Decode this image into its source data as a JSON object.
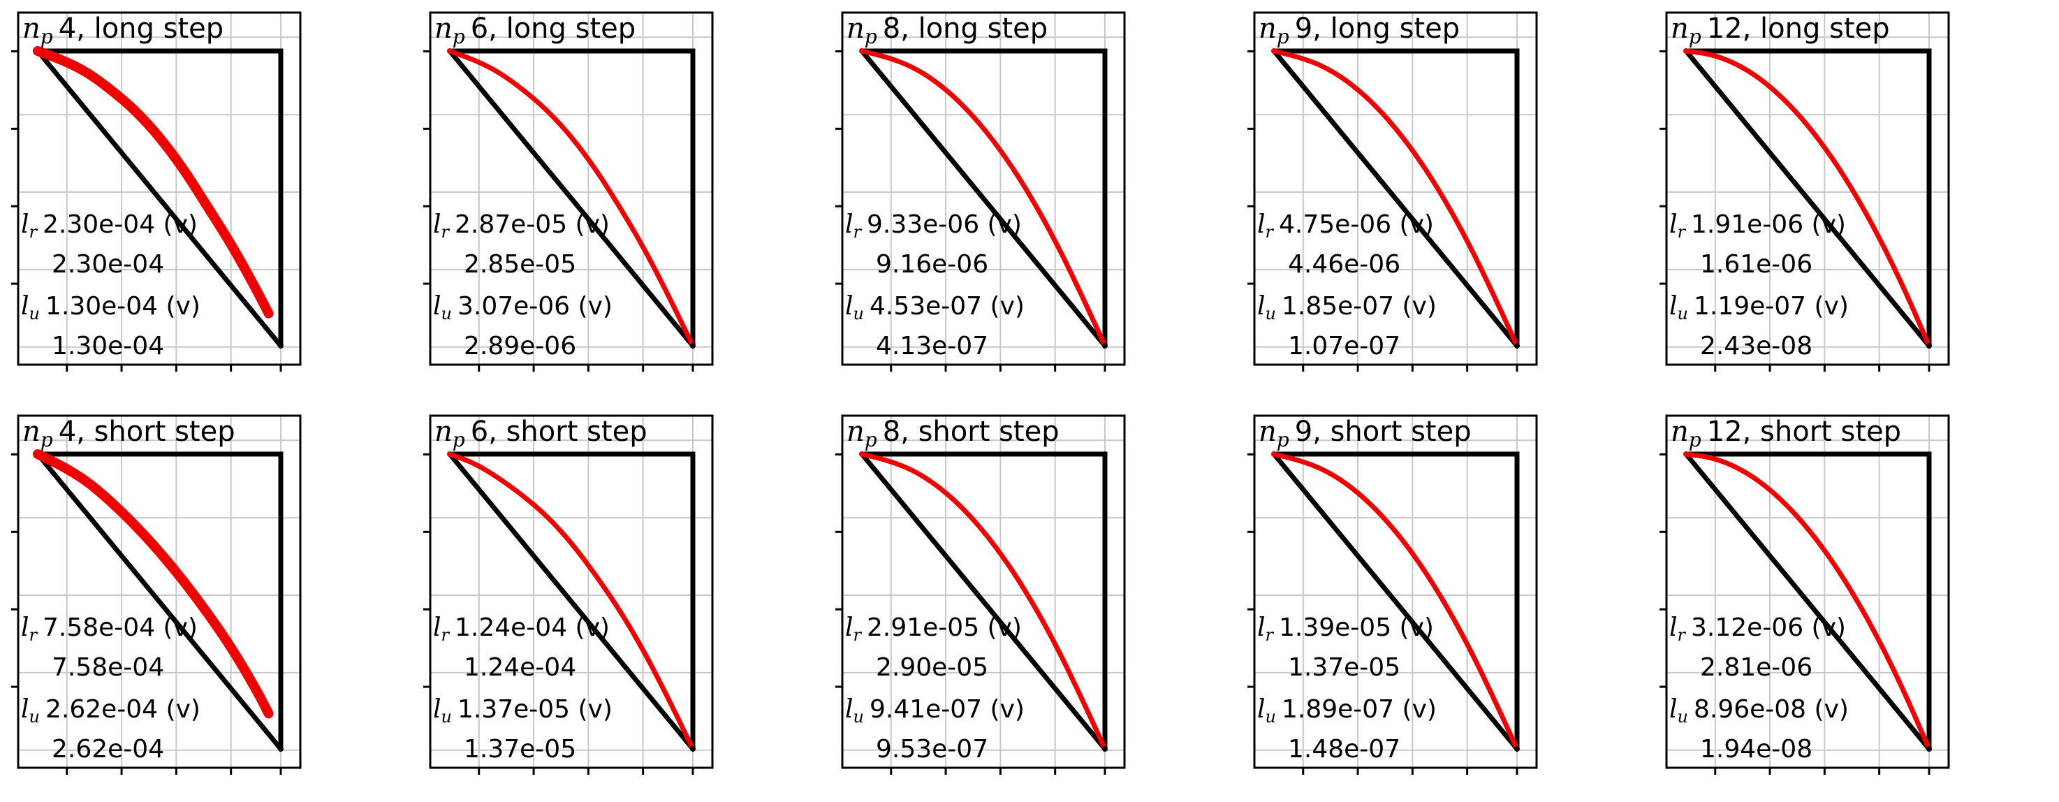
{
  "colors": {
    "curve": "#ee0000",
    "frame": "#000000",
    "grid": "#c8c8c8",
    "background": "#ffffff"
  },
  "chart_data": [
    {
      "type": "line",
      "title": "4, long step",
      "np": "4",
      "lr": {
        "top": "2.30e-04 (v)",
        "bottom": "2.30e-04"
      },
      "lu": {
        "top": "1.30e-04 (v)",
        "bottom": "1.30e-04"
      },
      "series": [
        {
          "x": [
            0,
            1
          ],
          "y": [
            1,
            0
          ]
        },
        {
          "x": [
            0,
            1,
            1
          ],
          "y": [
            1,
            1,
            0
          ]
        },
        {
          "x": [
            0,
            0.1,
            0.2,
            0.3,
            0.4,
            0.5,
            0.6,
            0.7,
            0.8,
            0.9,
            0.95
          ],
          "y": [
            1,
            0.97,
            0.93,
            0.87,
            0.8,
            0.71,
            0.6,
            0.47,
            0.34,
            0.19,
            0.11
          ]
        }
      ]
    },
    {
      "type": "line",
      "title": "6, long step",
      "np": "6",
      "lr": {
        "top": "2.87e-05 (v)",
        "bottom": "2.85e-05"
      },
      "lu": {
        "top": "3.07e-06 (v)",
        "bottom": "2.89e-06"
      },
      "series": [
        {
          "x": [
            0,
            1
          ],
          "y": [
            1,
            0
          ]
        },
        {
          "x": [
            0,
            1,
            1
          ],
          "y": [
            1,
            1,
            0
          ]
        },
        {
          "x": [
            0,
            0.1,
            0.2,
            0.3,
            0.4,
            0.5,
            0.6,
            0.7,
            0.8,
            0.9,
            1
          ],
          "y": [
            1,
            0.97,
            0.93,
            0.87,
            0.8,
            0.71,
            0.6,
            0.47,
            0.33,
            0.17,
            0
          ]
        }
      ]
    },
    {
      "type": "line",
      "title": "8, long step",
      "np": "8",
      "lr": {
        "top": "9.33e-06 (v)",
        "bottom": "9.16e-06"
      },
      "lu": {
        "top": "4.53e-07 (v)",
        "bottom": "4.13e-07"
      },
      "series": [
        {
          "x": [
            0,
            1
          ],
          "y": [
            1,
            0
          ]
        },
        {
          "x": [
            0,
            1,
            1
          ],
          "y": [
            1,
            1,
            0
          ]
        },
        {
          "x": [
            0,
            0.1,
            0.2,
            0.3,
            0.4,
            0.5,
            0.6,
            0.7,
            0.8,
            0.9,
            1
          ],
          "y": [
            1,
            0.98,
            0.95,
            0.9,
            0.83,
            0.74,
            0.63,
            0.5,
            0.35,
            0.18,
            0
          ]
        }
      ]
    },
    {
      "type": "line",
      "title": "9, long step",
      "np": "9",
      "lr": {
        "top": "4.75e-06 (v)",
        "bottom": "4.46e-06"
      },
      "lu": {
        "top": "1.85e-07 (v)",
        "bottom": "1.07e-07"
      },
      "series": [
        {
          "x": [
            0,
            1
          ],
          "y": [
            1,
            0
          ]
        },
        {
          "x": [
            0,
            1,
            1
          ],
          "y": [
            1,
            1,
            0
          ]
        },
        {
          "x": [
            0,
            0.1,
            0.2,
            0.3,
            0.4,
            0.5,
            0.6,
            0.7,
            0.8,
            0.9,
            1
          ],
          "y": [
            1,
            0.98,
            0.95,
            0.9,
            0.83,
            0.74,
            0.63,
            0.5,
            0.35,
            0.18,
            0
          ]
        }
      ]
    },
    {
      "type": "line",
      "title": "12, long step",
      "np": "12",
      "lr": {
        "top": "1.91e-06 (v)",
        "bottom": "1.61e-06"
      },
      "lu": {
        "top": "1.19e-07 (v)",
        "bottom": "2.43e-08"
      },
      "series": [
        {
          "x": [
            0,
            1
          ],
          "y": [
            1,
            0
          ]
        },
        {
          "x": [
            0,
            1,
            1
          ],
          "y": [
            1,
            1,
            0
          ]
        },
        {
          "x": [
            0,
            0.1,
            0.2,
            0.3,
            0.4,
            0.5,
            0.6,
            0.7,
            0.8,
            0.9,
            1
          ],
          "y": [
            1,
            0.99,
            0.96,
            0.91,
            0.84,
            0.75,
            0.64,
            0.51,
            0.36,
            0.19,
            0
          ]
        }
      ]
    },
    {
      "type": "line",
      "title": "4, short step",
      "np": "4",
      "lr": {
        "top": "7.58e-04 (v)",
        "bottom": "7.58e-04"
      },
      "lu": {
        "top": "2.62e-04 (v)",
        "bottom": "2.62e-04"
      },
      "series": [
        {
          "x": [
            0,
            1
          ],
          "y": [
            1,
            0
          ]
        },
        {
          "x": [
            0,
            1,
            1
          ],
          "y": [
            1,
            1,
            0
          ]
        },
        {
          "x": [
            0,
            0.1,
            0.2,
            0.3,
            0.4,
            0.5,
            0.6,
            0.7,
            0.8,
            0.9,
            0.95
          ],
          "y": [
            1,
            0.96,
            0.91,
            0.84,
            0.76,
            0.67,
            0.57,
            0.46,
            0.34,
            0.2,
            0.12
          ]
        }
      ]
    },
    {
      "type": "line",
      "title": "6, short step",
      "np": "6",
      "lr": {
        "top": "1.24e-04 (v)",
        "bottom": "1.24e-04"
      },
      "lu": {
        "top": "1.37e-05 (v)",
        "bottom": "1.37e-05"
      },
      "series": [
        {
          "x": [
            0,
            1
          ],
          "y": [
            1,
            0
          ]
        },
        {
          "x": [
            0,
            1,
            1
          ],
          "y": [
            1,
            1,
            0
          ]
        },
        {
          "x": [
            0,
            0.1,
            0.2,
            0.3,
            0.4,
            0.5,
            0.6,
            0.7,
            0.8,
            0.9,
            1
          ],
          "y": [
            1,
            0.97,
            0.92,
            0.86,
            0.79,
            0.7,
            0.59,
            0.47,
            0.33,
            0.17,
            0
          ]
        }
      ]
    },
    {
      "type": "line",
      "title": "8, short step",
      "np": "8",
      "lr": {
        "top": "2.91e-05 (v)",
        "bottom": "2.90e-05"
      },
      "lu": {
        "top": "9.41e-07 (v)",
        "bottom": "9.53e-07"
      },
      "series": [
        {
          "x": [
            0,
            1
          ],
          "y": [
            1,
            0
          ]
        },
        {
          "x": [
            0,
            1,
            1
          ],
          "y": [
            1,
            1,
            0
          ]
        },
        {
          "x": [
            0,
            0.1,
            0.2,
            0.3,
            0.4,
            0.5,
            0.6,
            0.7,
            0.8,
            0.9,
            1
          ],
          "y": [
            1,
            0.98,
            0.95,
            0.9,
            0.83,
            0.74,
            0.63,
            0.5,
            0.35,
            0.18,
            0
          ]
        }
      ]
    },
    {
      "type": "line",
      "title": "9, short step",
      "np": "9",
      "lr": {
        "top": "1.39e-05 (v)",
        "bottom": "1.37e-05"
      },
      "lu": {
        "top": "1.89e-07 (v)",
        "bottom": "1.48e-07"
      },
      "series": [
        {
          "x": [
            0,
            1
          ],
          "y": [
            1,
            0
          ]
        },
        {
          "x": [
            0,
            1,
            1
          ],
          "y": [
            1,
            1,
            0
          ]
        },
        {
          "x": [
            0,
            0.1,
            0.2,
            0.3,
            0.4,
            0.5,
            0.6,
            0.7,
            0.8,
            0.9,
            1
          ],
          "y": [
            1,
            0.98,
            0.95,
            0.9,
            0.83,
            0.74,
            0.63,
            0.5,
            0.35,
            0.18,
            0
          ]
        }
      ]
    },
    {
      "type": "line",
      "title": "12, short step",
      "np": "12",
      "lr": {
        "top": "3.12e-06 (v)",
        "bottom": "2.81e-06"
      },
      "lu": {
        "top": "8.96e-08 (v)",
        "bottom": "1.94e-08"
      },
      "series": [
        {
          "x": [
            0,
            1
          ],
          "y": [
            1,
            0
          ]
        },
        {
          "x": [
            0,
            1,
            1
          ],
          "y": [
            1,
            1,
            0
          ]
        },
        {
          "x": [
            0,
            0.1,
            0.2,
            0.3,
            0.4,
            0.5,
            0.6,
            0.7,
            0.8,
            0.9,
            1
          ],
          "y": [
            1,
            0.99,
            0.96,
            0.91,
            0.84,
            0.75,
            0.64,
            0.51,
            0.36,
            0.19,
            0
          ]
        }
      ]
    }
  ]
}
